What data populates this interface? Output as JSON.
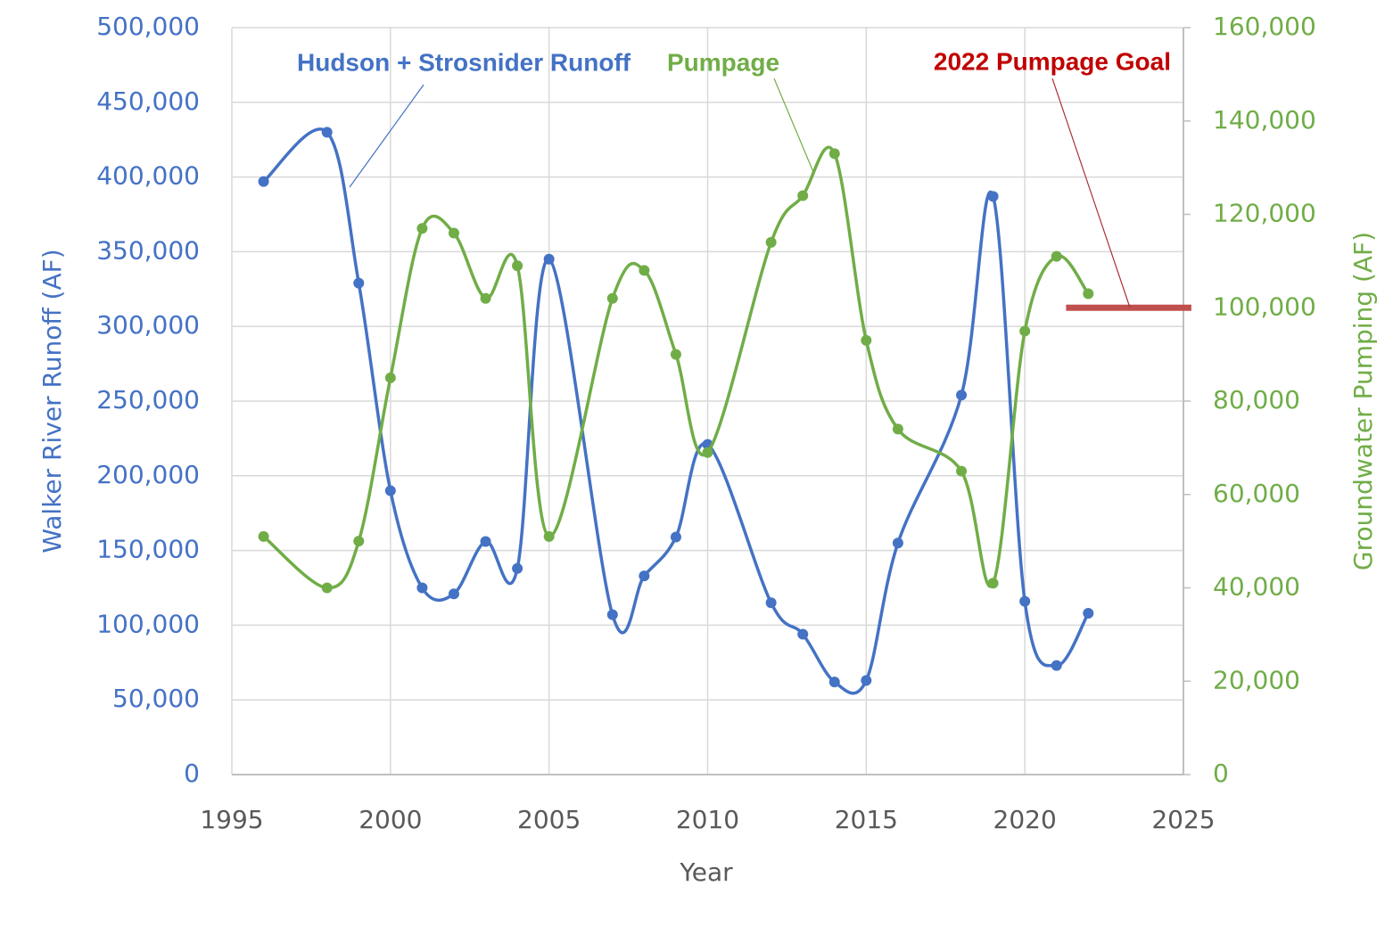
{
  "chart_data": {
    "type": "line",
    "x": [
      1996,
      1998,
      1999,
      2000,
      2001,
      2002,
      2003,
      2004,
      2005,
      2007,
      2008,
      2009,
      2010,
      2012,
      2013,
      2014,
      2015,
      2016,
      2018,
      2019,
      2020,
      2021,
      2022
    ],
    "series": [
      {
        "name": "Hudson + Strosnider Runoff",
        "color": "#4472c4",
        "axis": "y",
        "values": [
          397000,
          430000,
          329000,
          190000,
          125000,
          121000,
          156000,
          138000,
          345000,
          107000,
          133000,
          159000,
          221000,
          115000,
          94000,
          62000,
          63000,
          155000,
          254000,
          387000,
          116000,
          73000,
          108000
        ]
      },
      {
        "name": "Pumpage",
        "color": "#70ad47",
        "axis": "y2",
        "values": [
          51000,
          40000,
          50000,
          85000,
          117000,
          116000,
          102000,
          109000,
          51000,
          102000,
          108000,
          90000,
          69000,
          114000,
          124000,
          133000,
          93000,
          74000,
          65000,
          41000,
          95000,
          111000,
          103000
        ]
      }
    ],
    "goal": {
      "label": "2022 Pumpage Goal",
      "value": 100000,
      "x": [
        2021.3,
        2025.25
      ],
      "color": "#c0504d",
      "label_color": "#c00000"
    },
    "xlabel": "Year",
    "ylabel": "Walker River Runoff (AF)",
    "y2label": "Groundwater Pumping (AF)",
    "xlim": [
      1995,
      2025
    ],
    "xticks": [
      1995,
      2000,
      2005,
      2010,
      2015,
      2020,
      2025
    ],
    "ylim": [
      0,
      500000
    ],
    "yticks": [
      0,
      {
        "value": 50000,
        "label": "50,000"
      },
      {
        "value": 100000,
        "label": "100,000"
      },
      {
        "value": 150000,
        "label": "150,000"
      },
      {
        "value": 200000,
        "label": "200,000"
      },
      {
        "value": 250000,
        "label": "250,000"
      },
      {
        "value": 300000,
        "label": "300,000"
      },
      {
        "value": 350000,
        "label": "350,000"
      },
      {
        "value": 400000,
        "label": "400,000"
      },
      {
        "value": 450000,
        "label": "450,000"
      },
      {
        "value": 500000,
        "label": "500,000"
      }
    ],
    "y2lim": [
      0,
      160000
    ],
    "y2ticks": [
      0,
      {
        "value": 20000,
        "label": "20,000"
      },
      {
        "value": 40000,
        "label": "40,000"
      },
      {
        "value": 60000,
        "label": "60,000"
      },
      {
        "value": 80000,
        "label": "80,000"
      },
      {
        "value": 100000,
        "label": "100,000"
      },
      {
        "value": 120000,
        "label": "120,000"
      },
      {
        "value": 140000,
        "label": "140,000"
      },
      {
        "value": 160000,
        "label": "160,000"
      }
    ],
    "grid": true,
    "smooth": true
  }
}
